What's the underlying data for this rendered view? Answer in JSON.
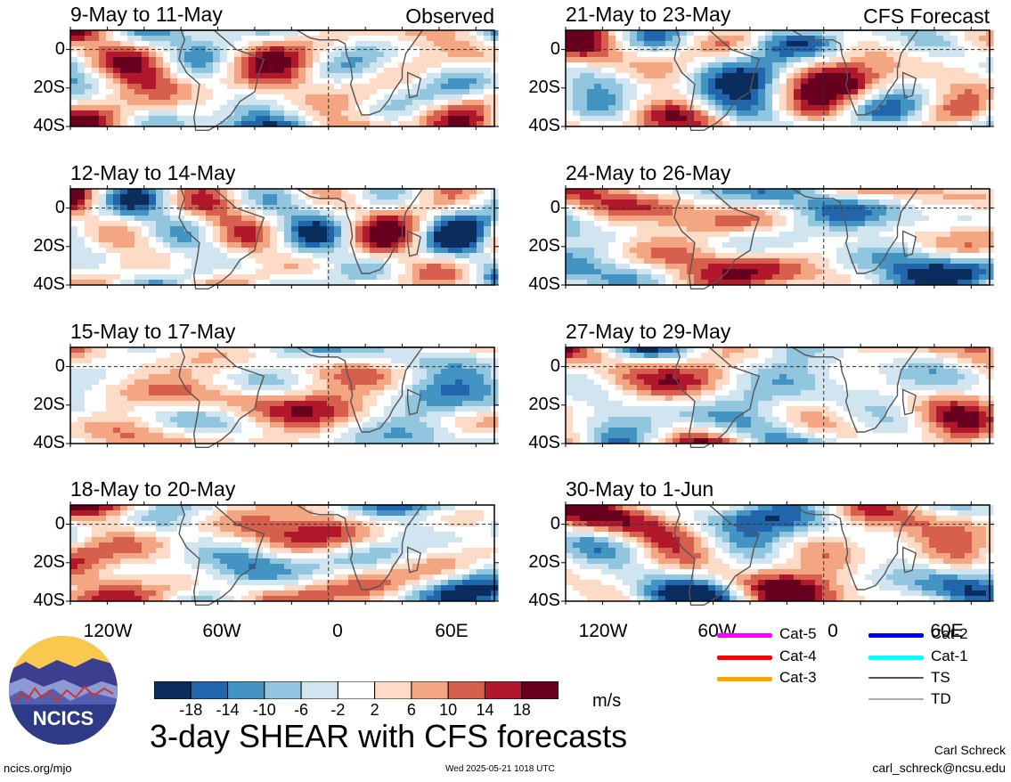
{
  "panels": [
    {
      "id": "p1",
      "date": "9-May to 11-May",
      "label": "Observed",
      "seed": 11
    },
    {
      "id": "p2",
      "date": "21-May to 23-May",
      "label": "CFS Forecast",
      "seed": 23
    },
    {
      "id": "p3",
      "date": "12-May to 14-May",
      "label": "",
      "seed": 37
    },
    {
      "id": "p4",
      "date": "24-May to 26-May",
      "label": "",
      "seed": 41
    },
    {
      "id": "p5",
      "date": "15-May to 17-May",
      "label": "",
      "seed": 53
    },
    {
      "id": "p6",
      "date": "27-May to 29-May",
      "label": "",
      "seed": 67
    },
    {
      "id": "p7",
      "date": "18-May to 20-May",
      "label": "",
      "seed": 71
    },
    {
      "id": "p8",
      "date": "30-May to 1-Jun",
      "label": "",
      "seed": 83
    }
  ],
  "chart_data": {
    "type": "heatmap",
    "title": "3-day SHEAR with CFS forecasts",
    "units": "m/s",
    "y_ticks": [
      "0",
      "20S",
      "40S"
    ],
    "x_ticks": [
      "120W",
      "60W",
      "0",
      "60E"
    ],
    "colorbar_ticks": [
      "-18",
      "-14",
      "-10",
      "-6",
      "-2",
      "2",
      "6",
      "10",
      "14",
      "18"
    ],
    "colorbar_colors": [
      "#0b2d5e",
      "#2166ac",
      "#4393c3",
      "#92c5de",
      "#d1e5f0",
      "#ffffff",
      "#fddbc7",
      "#f4a582",
      "#d6604d",
      "#b2182b",
      "#67001f"
    ],
    "legend": [
      {
        "name": "Cat-5",
        "color": "#ff00ff"
      },
      {
        "name": "Cat-4",
        "color": "#ff0000"
      },
      {
        "name": "Cat-3",
        "color": "#ffa500"
      },
      {
        "name": "Cat-2",
        "color": "#0000ff"
      },
      {
        "name": "Cat-1",
        "color": "#00ffff"
      },
      {
        "name": "TS",
        "color": "#555555"
      },
      {
        "name": "TD",
        "color": "#aaaaaa"
      }
    ]
  },
  "logo": {
    "text": "NCICS"
  },
  "footer": {
    "site": "ncics.org/mjo",
    "timestamp": "Wed 2025-05-21 1018 UTC",
    "author": "Carl Schreck",
    "email": "carl_schreck@ncsu.edu"
  }
}
